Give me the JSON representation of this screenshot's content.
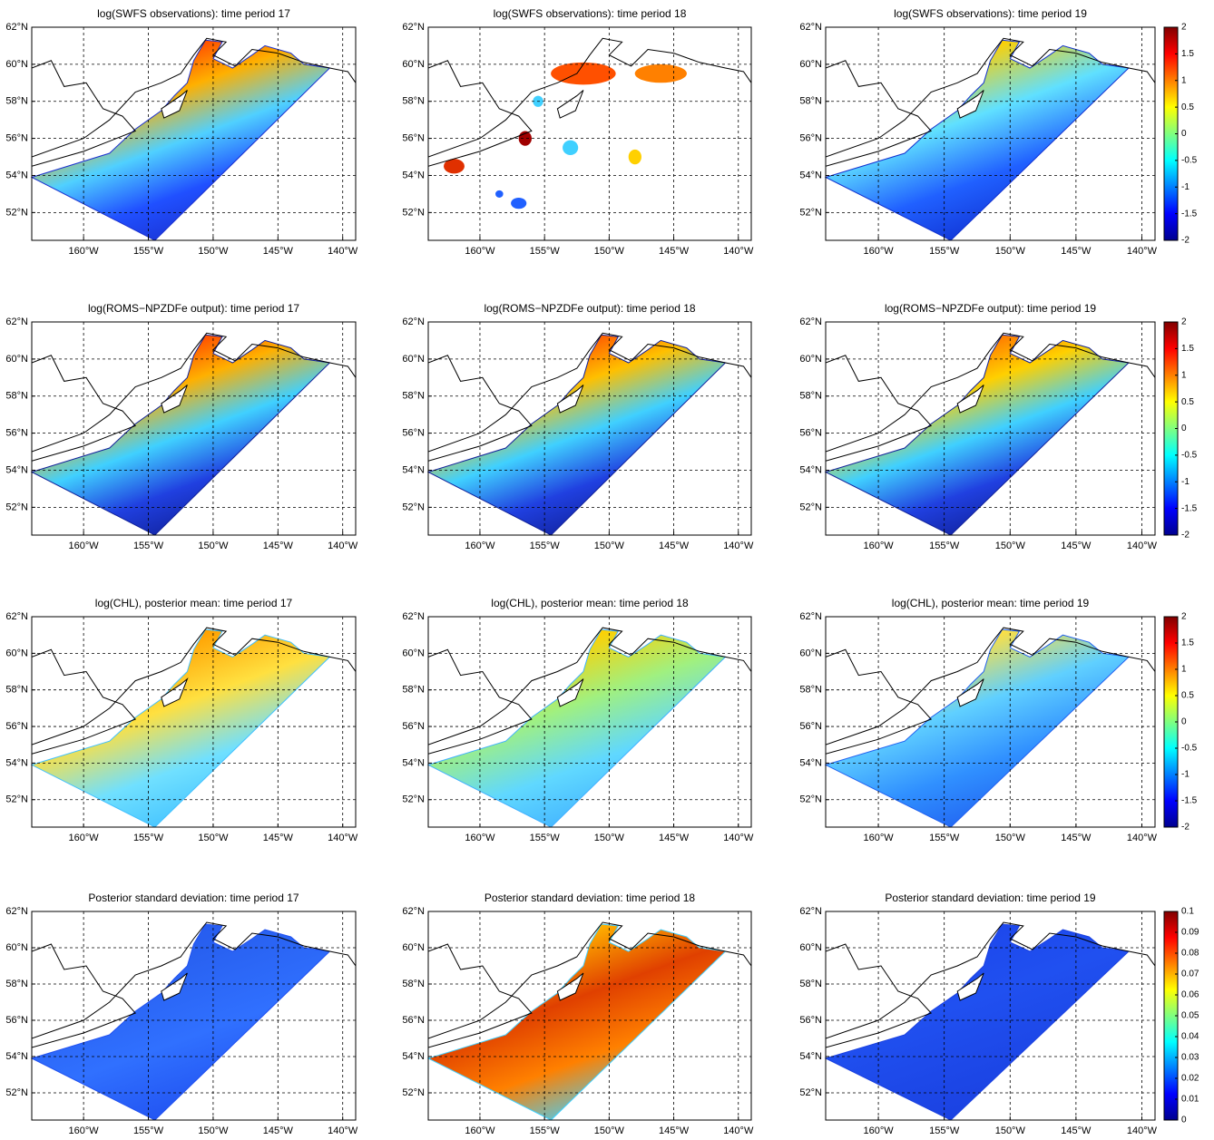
{
  "panels": [
    {
      "title": "log(SWFS observations): time period 17"
    },
    {
      "title": "log(SWFS observations): time period 18"
    },
    {
      "title": "log(SWFS observations): time period 19"
    },
    {
      "title": "log(ROMS−NPZDFe output): time period 17"
    },
    {
      "title": "log(ROMS−NPZDFe output): time period 18"
    },
    {
      "title": "log(ROMS−NPZDFe output): time period 19"
    },
    {
      "title": "log(CHL), posterior mean: time period 17"
    },
    {
      "title": "log(CHL), posterior mean: time period 18"
    },
    {
      "title": "log(CHL), posterior mean: time period 19"
    },
    {
      "title": "Posterior standard deviation: time period 17"
    },
    {
      "title": "Posterior standard deviation: time period 18"
    },
    {
      "title": "Posterior standard deviation: time period 19"
    }
  ],
  "axes": {
    "xlim": [
      -164,
      -139
    ],
    "ylim": [
      50.5,
      62
    ],
    "xticks": [
      {
        "value": -160,
        "label": "160°W"
      },
      {
        "value": -155,
        "label": "155°W"
      },
      {
        "value": -150,
        "label": "150°W"
      },
      {
        "value": -145,
        "label": "145°W"
      },
      {
        "value": -140,
        "label": "140°W"
      }
    ],
    "yticks": [
      {
        "value": 52,
        "label": "52°N"
      },
      {
        "value": 54,
        "label": "54°N"
      },
      {
        "value": 56,
        "label": "56°N"
      },
      {
        "value": 58,
        "label": "58°N"
      },
      {
        "value": 60,
        "label": "60°N"
      },
      {
        "value": 62,
        "label": "62°N"
      }
    ],
    "grid": true
  },
  "colorbars": [
    {
      "lim": [
        -2,
        2
      ],
      "ticks": [
        -2,
        -1.5,
        -1,
        -0.5,
        0,
        0.5,
        1,
        1.5,
        2
      ]
    },
    {
      "lim": [
        -2,
        2
      ],
      "ticks": [
        -2,
        -1.5,
        -1,
        -0.5,
        0,
        0.5,
        1,
        1.5,
        2
      ]
    },
    {
      "lim": [
        -2,
        2
      ],
      "ticks": [
        -2,
        -1.5,
        -1,
        -0.5,
        0,
        0.5,
        1,
        1.5,
        2
      ]
    },
    {
      "lim": [
        0,
        0.1
      ],
      "ticks": [
        0,
        0.01,
        0.02,
        0.03,
        0.04,
        0.05,
        0.06,
        0.07,
        0.08,
        0.09,
        0.1
      ]
    }
  ]
}
